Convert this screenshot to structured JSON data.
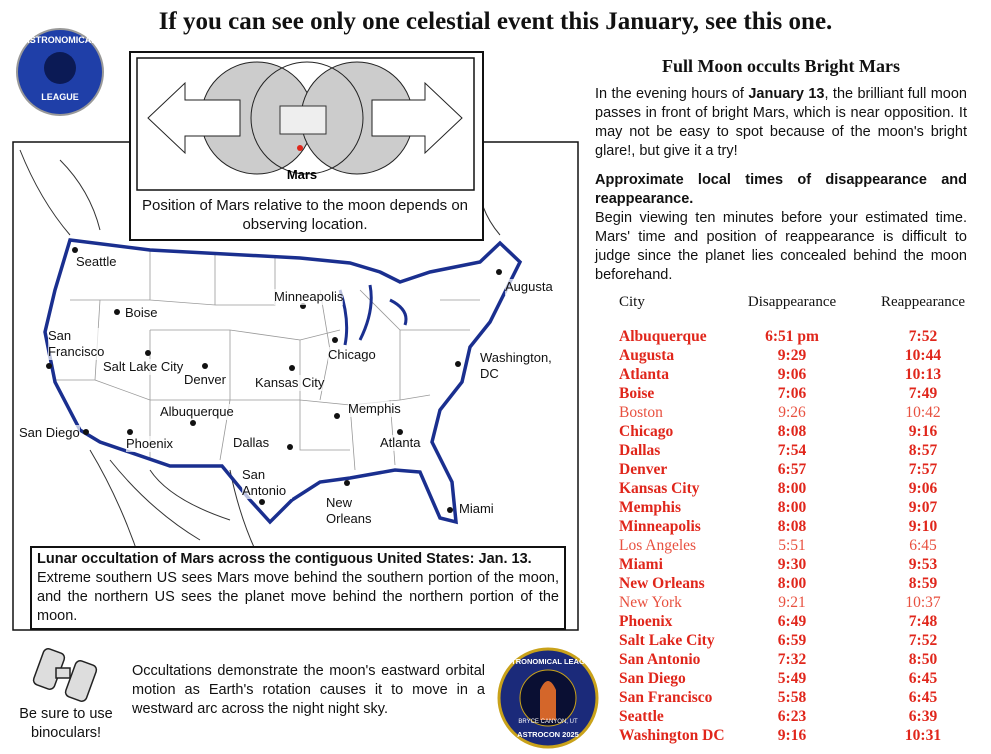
{
  "title": "If you can see only one celestial event this January, see this one.",
  "logo": {
    "top": "ASTRONOMICAL",
    "bottom": "LEAGUE"
  },
  "inset": {
    "label": "Mars",
    "caption": "Position of Mars relative to the moon depends on observing location."
  },
  "map": {
    "cities": [
      "Seattle",
      "Boise",
      "Minneapolis",
      "Augusta",
      "San Francisco",
      "Salt Lake City",
      "Denver",
      "Kansas City",
      "Chicago",
      "Washington, DC",
      "Albuquerque",
      "Memphis",
      "San Diego",
      "Phoenix",
      "Dallas",
      "Atlanta",
      "San Antonio",
      "New Orleans",
      "Miami"
    ]
  },
  "map_note": {
    "title": "Lunar occultation of Mars across the contiguous United States: Jan. 13.",
    "text": "Extreme southern US sees Mars move behind the southern portion of the moon, and the northern US sees the planet move behind the northern portion of the moon."
  },
  "binoculars": "Be sure to use binoculars!",
  "footer_text": "Occultations demonstrate the moon's eastward orbital motion as Earth's rotation causes it to move in a westward arc across the night  night sky.",
  "badge": {
    "top": "ASTRONOMICAL LEAGUE",
    "middle": "BRYCE CANYON, UT",
    "bottom": "ASTROCON 2025"
  },
  "article": {
    "heading": "Full Moon occults Bright Mars",
    "intro": [
      "In the evening hours of ",
      "January 13",
      ", the brilliant full moon passes in front of bright Mars, which is near opposition. It may not be easy to spot because of the moon's bright glare!, but give it a try!"
    ],
    "subheading": "Approximate local times of disappearance and reappearance.",
    "text": "Begin viewing ten minutes before your estimated time. Mars' time and position of reappearance is difficult to judge since the planet lies concealed behind the moon beforehand."
  },
  "table": {
    "header": [
      "City",
      "Disappearance",
      "Reappearance"
    ],
    "rows": [
      {
        "city": "Albuquerque",
        "disappearance": "6:51 pm",
        "reappearance": "7:52",
        "bold": true
      },
      {
        "city": "Augusta",
        "disappearance": "9:29",
        "reappearance": "10:44",
        "bold": true
      },
      {
        "city": "Atlanta",
        "disappearance": "9:06",
        "reappearance": "10:13",
        "bold": true
      },
      {
        "city": "Boise",
        "disappearance": "7:06",
        "reappearance": "7:49",
        "bold": true
      },
      {
        "city": "Boston",
        "disappearance": "9:26",
        "reappearance": "10:42",
        "bold": false
      },
      {
        "city": "Chicago",
        "disappearance": "8:08",
        "reappearance": "9:16",
        "bold": true
      },
      {
        "city": "Dallas",
        "disappearance": "7:54",
        "reappearance": "8:57",
        "bold": true
      },
      {
        "city": "Denver",
        "disappearance": "6:57",
        "reappearance": "7:57",
        "bold": true
      },
      {
        "city": "Kansas City",
        "disappearance": "8:00",
        "reappearance": "9:06",
        "bold": true
      },
      {
        "city": "Memphis",
        "disappearance": "8:00",
        "reappearance": "9:07",
        "bold": true
      },
      {
        "city": "Minneapolis",
        "disappearance": "8:08",
        "reappearance": "9:10",
        "bold": true
      },
      {
        "city": "Los Angeles",
        "disappearance": "5:51",
        "reappearance": "6:45",
        "bold": false
      },
      {
        "city": "Miami",
        "disappearance": "9:30",
        "reappearance": "9:53",
        "bold": true
      },
      {
        "city": "New Orleans",
        "disappearance": "8:00",
        "reappearance": "8:59",
        "bold": true
      },
      {
        "city": "New York",
        "disappearance": "9:21",
        "reappearance": "10:37",
        "bold": false
      },
      {
        "city": "Phoenix",
        "disappearance": "6:49",
        "reappearance": "7:48",
        "bold": true
      },
      {
        "city": "Salt Lake City",
        "disappearance": "6:59",
        "reappearance": "7:52",
        "bold": true
      },
      {
        "city": "San Antonio",
        "disappearance": "7:32",
        "reappearance": "8:50",
        "bold": true
      },
      {
        "city": "San Diego",
        "disappearance": "5:49",
        "reappearance": "6:45",
        "bold": true
      },
      {
        "city": "San Francisco",
        "disappearance": "5:58",
        "reappearance": "6:45",
        "bold": true
      },
      {
        "city": "Seattle",
        "disappearance": "6:23",
        "reappearance": "6:39",
        "bold": true
      },
      {
        "city": "Washington DC",
        "disappearance": "9:16",
        "reappearance": "10:31",
        "bold": true
      }
    ]
  }
}
